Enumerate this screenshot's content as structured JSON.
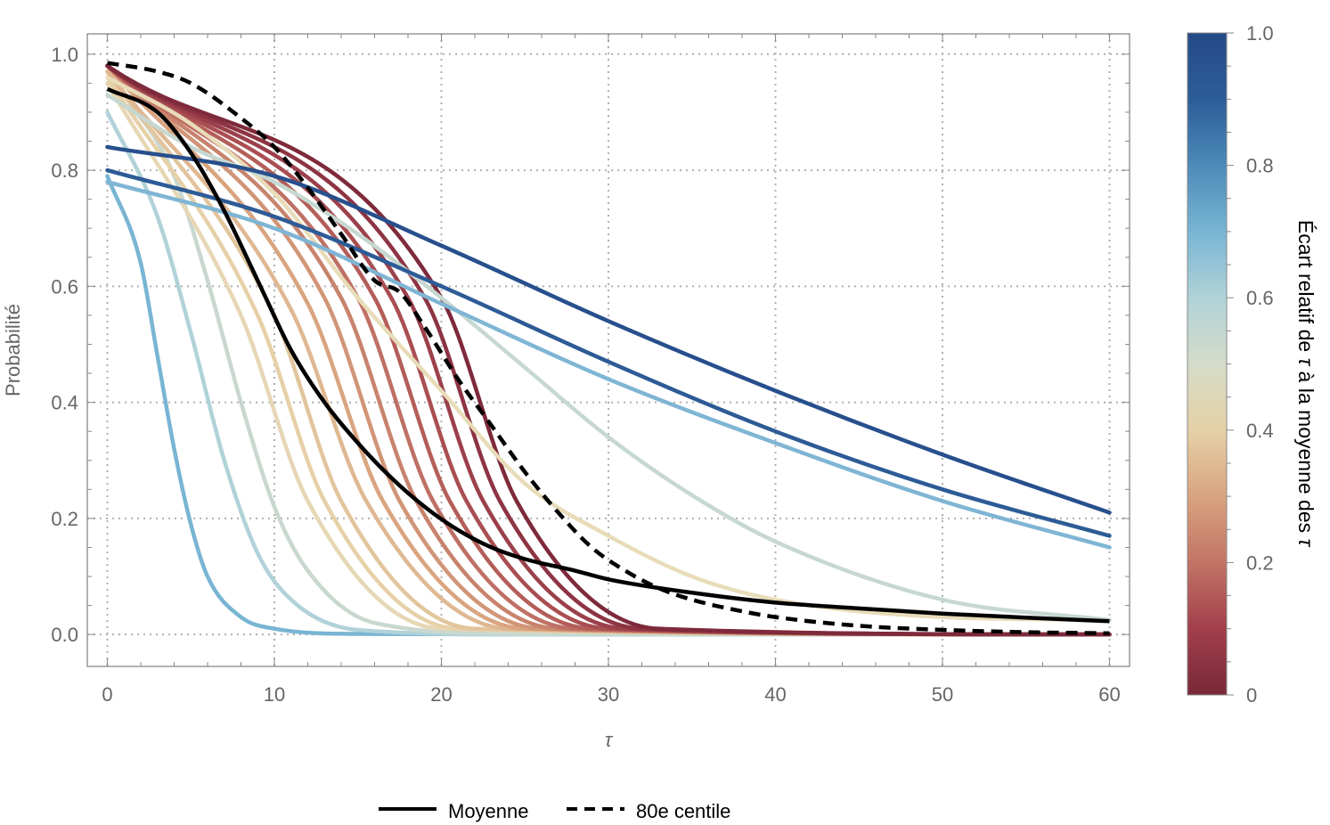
{
  "chart_data": {
    "type": "line",
    "title": "",
    "xlabel": "τ",
    "ylabel": "Probabilité",
    "xlim": [
      -1.2,
      61.2
    ],
    "ylim": [
      -0.055,
      1.035
    ],
    "x_ticks": [
      "0",
      "10",
      "20",
      "30",
      "40",
      "50",
      "60"
    ],
    "y_ticks": [
      "0.0",
      "0.2",
      "0.4",
      "0.6",
      "0.8",
      "1.0"
    ],
    "grid": true,
    "colorbar": {
      "title_parts": [
        "Écart relatif de ",
        "τ",
        " à la moyenne des ",
        "τ"
      ],
      "ticks": [
        "0",
        "0.2",
        "0.4",
        "0.6",
        "0.8",
        "1.0"
      ],
      "range": [
        0,
        1
      ],
      "colors": [
        "#7a2838",
        "#a13f4b",
        "#c27466",
        "#d9a47f",
        "#e6d0a7",
        "#d5dcc9",
        "#b0d2d8",
        "#79b5d3",
        "#4d8ab8",
        "#2c5d97",
        "#254b87"
      ]
    },
    "series": [
      {
        "name": "c0.7",
        "kind": "logistic",
        "value": 0.7,
        "color": "#79b5d3",
        "values": [
          [
            0,
            0.79
          ],
          [
            2,
            0.64
          ],
          [
            3,
            0.48
          ],
          [
            4,
            0.32
          ],
          [
            5,
            0.19
          ],
          [
            6,
            0.1
          ],
          [
            8,
            0.03
          ],
          [
            10,
            0.01
          ],
          [
            15,
            0.001
          ],
          [
            25,
            0.0
          ],
          [
            60,
            0.0
          ]
        ]
      },
      {
        "name": "c0.62",
        "kind": "logistic",
        "value": 0.62,
        "color": "#b0d2d8",
        "values": [
          [
            0,
            0.9
          ],
          [
            3,
            0.72
          ],
          [
            5,
            0.52
          ],
          [
            7,
            0.3
          ],
          [
            9,
            0.14
          ],
          [
            11,
            0.06
          ],
          [
            15,
            0.008
          ],
          [
            25,
            0.0
          ],
          [
            60,
            0.0
          ]
        ]
      },
      {
        "name": "c0.55",
        "kind": "logistic",
        "value": 0.55,
        "color": "#c9d8cf",
        "values": [
          [
            0,
            0.93
          ],
          [
            2,
            0.89
          ],
          [
            4,
            0.79
          ],
          [
            6,
            0.61
          ],
          [
            8,
            0.4
          ],
          [
            10,
            0.22
          ],
          [
            12,
            0.11
          ],
          [
            16,
            0.02
          ],
          [
            25,
            0.001
          ],
          [
            60,
            0.0
          ]
        ]
      },
      {
        "name": "c0.5",
        "kind": "logistic",
        "value": 0.5,
        "color": "#e6d7b5",
        "values": [
          [
            0,
            0.95
          ],
          [
            8,
            0.55
          ],
          [
            12,
            0.23
          ],
          [
            20,
            0.01
          ],
          [
            60,
            0.0
          ]
        ]
      },
      {
        "name": "c0.46",
        "kind": "logistic",
        "value": 0.46,
        "color": "#e6d0a7",
        "values": [
          [
            0,
            0.96
          ],
          [
            9,
            0.55
          ],
          [
            13,
            0.23
          ],
          [
            21,
            0.01
          ],
          [
            60,
            0.0
          ]
        ]
      },
      {
        "name": "c0.42",
        "kind": "logistic",
        "value": 0.42,
        "color": "#e2c59d",
        "values": [
          [
            0,
            0.97
          ],
          [
            10,
            0.55
          ],
          [
            14,
            0.23
          ],
          [
            22,
            0.01
          ],
          [
            60,
            0.0
          ]
        ]
      },
      {
        "name": "c0.38",
        "kind": "logistic",
        "value": 0.38,
        "color": "#dfb893",
        "values": [
          [
            0,
            0.97
          ],
          [
            11,
            0.56
          ],
          [
            15.5,
            0.23
          ],
          [
            24,
            0.01
          ],
          [
            60,
            0.0
          ]
        ]
      },
      {
        "name": "c0.34",
        "kind": "logistic",
        "value": 0.34,
        "color": "#d9a47f",
        "values": [
          [
            0,
            0.98
          ],
          [
            12,
            0.57
          ],
          [
            16.5,
            0.23
          ],
          [
            25,
            0.01
          ],
          [
            60,
            0.0
          ]
        ]
      },
      {
        "name": "c0.30",
        "kind": "logistic",
        "value": 0.3,
        "color": "#d19577",
        "values": [
          [
            0,
            0.98
          ],
          [
            13,
            0.58
          ],
          [
            17.5,
            0.23
          ],
          [
            26,
            0.01
          ],
          [
            60,
            0.0
          ]
        ]
      },
      {
        "name": "c0.26",
        "kind": "logistic",
        "value": 0.26,
        "color": "#c8836d",
        "values": [
          [
            0,
            0.98
          ],
          [
            14,
            0.58
          ],
          [
            18.5,
            0.23
          ],
          [
            27,
            0.01
          ],
          [
            60,
            0.0
          ]
        ]
      },
      {
        "name": "c0.22",
        "kind": "logistic",
        "value": 0.22,
        "color": "#bf7064",
        "values": [
          [
            0,
            0.98
          ],
          [
            15,
            0.58
          ],
          [
            19.5,
            0.23
          ],
          [
            28,
            0.01
          ],
          [
            60,
            0.0
          ]
        ]
      },
      {
        "name": "c0.18",
        "kind": "logistic",
        "value": 0.18,
        "color": "#b45e59",
        "values": [
          [
            0,
            0.98
          ],
          [
            16,
            0.58
          ],
          [
            20.5,
            0.23
          ],
          [
            29,
            0.01
          ],
          [
            60,
            0.0
          ]
        ]
      },
      {
        "name": "c0.14",
        "kind": "logistic",
        "value": 0.14,
        "color": "#a94e52",
        "values": [
          [
            0,
            0.98
          ],
          [
            17,
            0.58
          ],
          [
            21.5,
            0.23
          ],
          [
            30,
            0.01
          ],
          [
            60,
            0.0
          ]
        ]
      },
      {
        "name": "c0.10",
        "kind": "logistic",
        "value": 0.1,
        "color": "#9b404b",
        "values": [
          [
            0,
            0.98
          ],
          [
            18,
            0.58
          ],
          [
            22.5,
            0.23
          ],
          [
            31,
            0.01
          ],
          [
            60,
            0.0
          ]
        ]
      },
      {
        "name": "c0.06",
        "kind": "logistic",
        "value": 0.06,
        "color": "#8d3443",
        "values": [
          [
            0,
            0.98
          ],
          [
            19,
            0.58
          ],
          [
            23.5,
            0.23
          ],
          [
            32,
            0.01
          ],
          [
            60,
            0.0
          ]
        ]
      },
      {
        "name": "c0.03",
        "kind": "logistic",
        "value": 0.03,
        "color": "#7e2a3b",
        "values": [
          [
            0,
            0.98
          ],
          [
            20,
            0.58
          ],
          [
            24.5,
            0.23
          ],
          [
            33,
            0.01
          ],
          [
            60,
            0.0
          ]
        ]
      },
      {
        "name": "c0.45b",
        "kind": "logistic",
        "value": 0.45,
        "color": "#e8dcb9",
        "values": [
          [
            0,
            0.96
          ],
          [
            5,
            0.88
          ],
          [
            10,
            0.76
          ],
          [
            15,
            0.58
          ],
          [
            20,
            0.42
          ],
          [
            25,
            0.26
          ],
          [
            30,
            0.17
          ],
          [
            35,
            0.1
          ],
          [
            40,
            0.06
          ],
          [
            50,
            0.03
          ],
          [
            60,
            0.025
          ]
        ]
      },
      {
        "name": "c0.6b",
        "kind": "logistic",
        "value": 0.6,
        "color": "#c6d8d0",
        "values": [
          [
            0,
            0.93
          ],
          [
            5,
            0.84
          ],
          [
            10,
            0.78
          ],
          [
            15,
            0.69
          ],
          [
            20,
            0.58
          ],
          [
            25,
            0.46
          ],
          [
            30,
            0.34
          ],
          [
            35,
            0.24
          ],
          [
            40,
            0.16
          ],
          [
            50,
            0.06
          ],
          [
            60,
            0.025
          ]
        ]
      },
      {
        "name": "c0.82",
        "kind": "linear",
        "value": 0.82,
        "color": "#7fb5d4",
        "values": [
          [
            0,
            0.78
          ],
          [
            10,
            0.7
          ],
          [
            20,
            0.57
          ],
          [
            30,
            0.44
          ],
          [
            40,
            0.33
          ],
          [
            50,
            0.23
          ],
          [
            60,
            0.15
          ]
        ]
      },
      {
        "name": "c0.96",
        "kind": "linear",
        "value": 0.96,
        "color": "#2d5b96",
        "values": [
          [
            0,
            0.8
          ],
          [
            10,
            0.72
          ],
          [
            20,
            0.6
          ],
          [
            30,
            0.47
          ],
          [
            40,
            0.35
          ],
          [
            50,
            0.25
          ],
          [
            60,
            0.17
          ]
        ]
      },
      {
        "name": "c1.0",
        "kind": "linear",
        "value": 1.0,
        "color": "#274f8d",
        "values": [
          [
            0,
            0.84
          ],
          [
            10,
            0.79
          ],
          [
            20,
            0.67
          ],
          [
            30,
            0.54
          ],
          [
            40,
            0.42
          ],
          [
            50,
            0.31
          ],
          [
            60,
            0.21
          ]
        ]
      },
      {
        "name": "Moyenne",
        "kind": "mean",
        "color": "#000000",
        "values": [
          [
            0,
            0.94
          ],
          [
            3,
            0.9
          ],
          [
            5,
            0.83
          ],
          [
            7,
            0.73
          ],
          [
            9,
            0.61
          ],
          [
            11,
            0.49
          ],
          [
            13,
            0.4
          ],
          [
            15,
            0.33
          ],
          [
            17,
            0.27
          ],
          [
            19,
            0.22
          ],
          [
            21,
            0.18
          ],
          [
            23,
            0.15
          ],
          [
            25,
            0.13
          ],
          [
            28,
            0.11
          ],
          [
            30,
            0.095
          ],
          [
            35,
            0.072
          ],
          [
            40,
            0.055
          ],
          [
            45,
            0.045
          ],
          [
            50,
            0.036
          ],
          [
            55,
            0.029
          ],
          [
            60,
            0.023
          ]
        ]
      },
      {
        "name": "80e centile",
        "kind": "p80",
        "color": "#000000",
        "values": [
          [
            0,
            0.985
          ],
          [
            3,
            0.97
          ],
          [
            5,
            0.95
          ],
          [
            8,
            0.89
          ],
          [
            10,
            0.84
          ],
          [
            12,
            0.77
          ],
          [
            14,
            0.69
          ],
          [
            16,
            0.61
          ],
          [
            17.5,
            0.59
          ],
          [
            19,
            0.53
          ],
          [
            21,
            0.44
          ],
          [
            23,
            0.36
          ],
          [
            25,
            0.28
          ],
          [
            27,
            0.21
          ],
          [
            29,
            0.15
          ],
          [
            31,
            0.11
          ],
          [
            33,
            0.08
          ],
          [
            35,
            0.06
          ],
          [
            38,
            0.04
          ],
          [
            40,
            0.03
          ],
          [
            45,
            0.015
          ],
          [
            50,
            0.008
          ],
          [
            55,
            0.004
          ],
          [
            60,
            0.002
          ]
        ]
      }
    ],
    "legend": [
      {
        "label": "Moyenne",
        "style": "solid"
      },
      {
        "label": "80e centile",
        "style": "dashed"
      }
    ],
    "legend_position": "bottom"
  }
}
